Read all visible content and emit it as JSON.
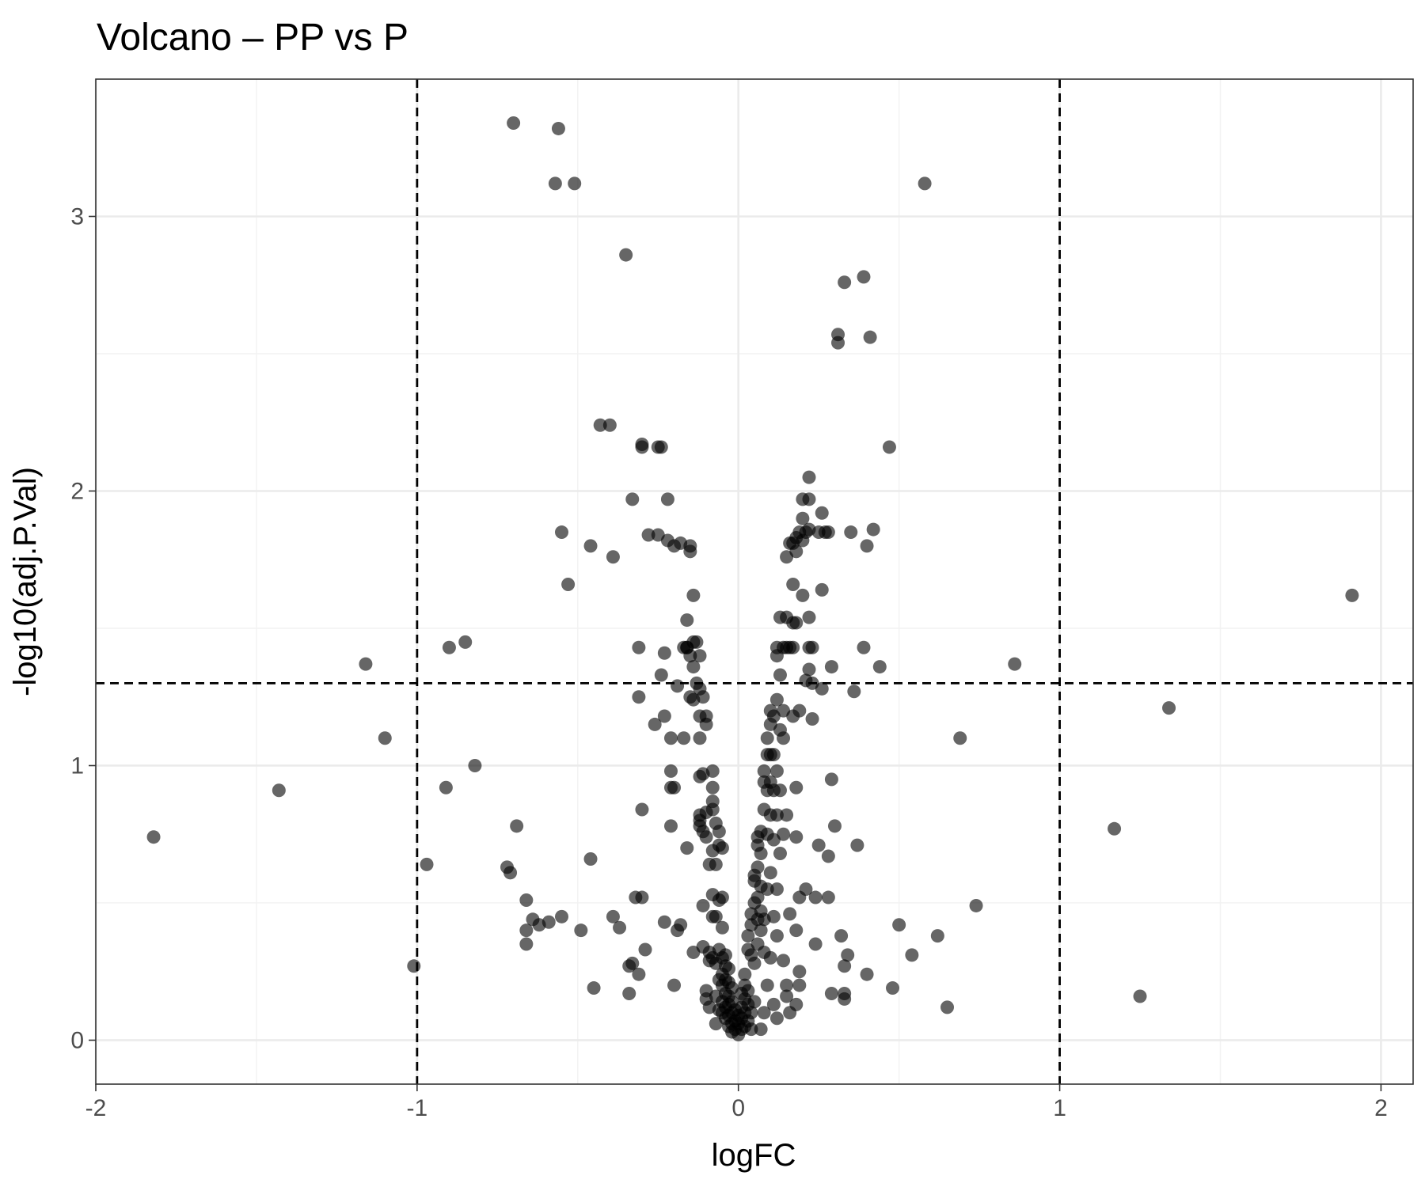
{
  "chart_data": {
    "type": "scatter",
    "title": "Volcano – PP vs P",
    "xlabel": "logFC",
    "ylabel": "-log10(adj.P.Val)",
    "xlim": [
      -2.0,
      2.1
    ],
    "ylim": [
      -0.16,
      3.5
    ],
    "x_ticks": [
      -2,
      -1,
      0,
      1,
      2
    ],
    "x_tick_labels": [
      "-2",
      "-1",
      "0",
      "1",
      "2"
    ],
    "y_ticks": [
      0,
      1,
      2,
      3
    ],
    "y_tick_labels": [
      "0",
      "1",
      "2",
      "3"
    ],
    "grid": true,
    "legend": "none",
    "point_color": "#000000",
    "point_opacity": 0.6,
    "thresholds": {
      "logFC": [
        -1,
        1
      ],
      "neg_log10_p": 1.3
    },
    "points": [
      [
        -1.82,
        0.74
      ],
      [
        -1.43,
        0.91
      ],
      [
        -1.16,
        1.37
      ],
      [
        -1.1,
        1.1
      ],
      [
        -1.01,
        0.27
      ],
      [
        -0.97,
        0.64
      ],
      [
        -0.91,
        0.92
      ],
      [
        -0.9,
        1.43
      ],
      [
        -0.85,
        1.45
      ],
      [
        -0.82,
        1.0
      ],
      [
        -0.72,
        0.63
      ],
      [
        -0.71,
        0.61
      ],
      [
        -0.7,
        3.34
      ],
      [
        -0.69,
        0.78
      ],
      [
        -0.66,
        0.51
      ],
      [
        -0.66,
        0.4
      ],
      [
        -0.66,
        0.35
      ],
      [
        -0.64,
        0.44
      ],
      [
        -0.62,
        0.42
      ],
      [
        -0.59,
        0.43
      ],
      [
        -0.57,
        3.12
      ],
      [
        -0.56,
        3.32
      ],
      [
        -0.55,
        0.45
      ],
      [
        -0.55,
        1.85
      ],
      [
        -0.53,
        1.66
      ],
      [
        -0.51,
        3.12
      ],
      [
        -0.49,
        0.4
      ],
      [
        -0.46,
        1.8
      ],
      [
        -0.46,
        0.66
      ],
      [
        -0.45,
        0.19
      ],
      [
        -0.43,
        2.24
      ],
      [
        -0.4,
        2.24
      ],
      [
        -0.39,
        0.45
      ],
      [
        -0.39,
        1.76
      ],
      [
        -0.37,
        0.41
      ],
      [
        -0.35,
        2.86
      ],
      [
        -0.34,
        0.27
      ],
      [
        -0.34,
        0.17
      ],
      [
        -0.33,
        0.28
      ],
      [
        -0.33,
        1.97
      ],
      [
        -0.32,
        0.52
      ],
      [
        -0.31,
        0.24
      ],
      [
        -0.31,
        1.25
      ],
      [
        -0.31,
        1.43
      ],
      [
        -0.3,
        2.17
      ],
      [
        -0.3,
        2.16
      ],
      [
        -0.3,
        0.52
      ],
      [
        -0.3,
        0.84
      ],
      [
        -0.29,
        0.33
      ],
      [
        -0.28,
        1.84
      ],
      [
        -0.26,
        1.15
      ],
      [
        -0.25,
        1.84
      ],
      [
        -0.25,
        2.16
      ],
      [
        -0.24,
        1.33
      ],
      [
        -0.24,
        2.16
      ],
      [
        -0.23,
        0.43
      ],
      [
        -0.23,
        1.41
      ],
      [
        -0.23,
        1.18
      ],
      [
        -0.22,
        1.97
      ],
      [
        -0.22,
        1.82
      ],
      [
        -0.21,
        1.1
      ],
      [
        -0.21,
        0.78
      ],
      [
        -0.21,
        0.98
      ],
      [
        -0.21,
        0.92
      ],
      [
        -0.2,
        0.92
      ],
      [
        -0.2,
        1.8
      ],
      [
        -0.2,
        0.2
      ],
      [
        -0.19,
        0.4
      ],
      [
        -0.19,
        1.29
      ],
      [
        -0.18,
        1.81
      ],
      [
        -0.18,
        0.42
      ],
      [
        -0.17,
        1.43
      ],
      [
        -0.17,
        1.1
      ],
      [
        -0.16,
        1.53
      ],
      [
        -0.16,
        1.43
      ],
      [
        -0.16,
        0.7
      ],
      [
        -0.16,
        1.43
      ],
      [
        -0.15,
        1.8
      ],
      [
        -0.15,
        1.78
      ],
      [
        -0.15,
        1.25
      ],
      [
        -0.15,
        1.4
      ],
      [
        -0.14,
        1.45
      ],
      [
        -0.14,
        1.36
      ],
      [
        -0.14,
        1.62
      ],
      [
        -0.14,
        1.24
      ],
      [
        -0.14,
        0.32
      ],
      [
        -0.13,
        1.45
      ],
      [
        -0.13,
        1.3
      ],
      [
        -0.12,
        1.28
      ],
      [
        -0.12,
        1.18
      ],
      [
        -0.12,
        1.1
      ],
      [
        -0.12,
        0.96
      ],
      [
        -0.12,
        0.82
      ],
      [
        -0.12,
        0.8
      ],
      [
        -0.12,
        0.78
      ],
      [
        -0.12,
        1.4
      ],
      [
        -0.11,
        1.25
      ],
      [
        -0.11,
        0.97
      ],
      [
        -0.11,
        0.76
      ],
      [
        -0.11,
        0.49
      ],
      [
        -0.11,
        0.34
      ],
      [
        -0.1,
        0.18
      ],
      [
        -0.1,
        0.15
      ],
      [
        -0.1,
        1.18
      ],
      [
        -0.1,
        1.15
      ],
      [
        -0.1,
        0.83
      ],
      [
        -0.1,
        0.74
      ],
      [
        -0.09,
        0.64
      ],
      [
        -0.09,
        0.32
      ],
      [
        -0.09,
        0.29
      ],
      [
        -0.09,
        0.12
      ],
      [
        -0.08,
        0.98
      ],
      [
        -0.08,
        0.92
      ],
      [
        -0.08,
        0.87
      ],
      [
        -0.08,
        0.84
      ],
      [
        -0.08,
        0.69
      ],
      [
        -0.08,
        0.53
      ],
      [
        -0.08,
        0.45
      ],
      [
        -0.08,
        0.3
      ],
      [
        -0.07,
        0.79
      ],
      [
        -0.07,
        0.64
      ],
      [
        -0.07,
        0.45
      ],
      [
        -0.07,
        0.28
      ],
      [
        -0.07,
        0.16
      ],
      [
        -0.07,
        0.06
      ],
      [
        -0.06,
        0.76
      ],
      [
        -0.06,
        0.71
      ],
      [
        -0.06,
        0.51
      ],
      [
        -0.06,
        0.33
      ],
      [
        -0.06,
        0.22
      ],
      [
        -0.06,
        0.11
      ],
      [
        -0.05,
        0.7
      ],
      [
        -0.05,
        0.52
      ],
      [
        -0.05,
        0.41
      ],
      [
        -0.05,
        0.3
      ],
      [
        -0.05,
        0.24
      ],
      [
        -0.05,
        0.2
      ],
      [
        -0.05,
        0.14
      ],
      [
        -0.05,
        0.1
      ],
      [
        -0.04,
        0.31
      ],
      [
        -0.04,
        0.27
      ],
      [
        -0.04,
        0.22
      ],
      [
        -0.04,
        0.17
      ],
      [
        -0.04,
        0.12
      ],
      [
        -0.04,
        0.08
      ],
      [
        -0.03,
        0.26
      ],
      [
        -0.03,
        0.21
      ],
      [
        -0.03,
        0.16
      ],
      [
        -0.03,
        0.13
      ],
      [
        -0.03,
        0.09
      ],
      [
        -0.03,
        0.05
      ],
      [
        -0.02,
        0.19
      ],
      [
        -0.02,
        0.14
      ],
      [
        -0.02,
        0.1
      ],
      [
        -0.02,
        0.06
      ],
      [
        -0.02,
        0.03
      ],
      [
        -0.01,
        0.11
      ],
      [
        -0.01,
        0.07
      ],
      [
        -0.01,
        0.04
      ],
      [
        0.0,
        0.06
      ],
      [
        0.0,
        0.02
      ],
      [
        0.0,
        0.09
      ],
      [
        0.01,
        0.04
      ],
      [
        0.01,
        0.08
      ],
      [
        0.01,
        0.12
      ],
      [
        0.01,
        0.17
      ],
      [
        0.02,
        0.05
      ],
      [
        0.02,
        0.1
      ],
      [
        0.02,
        0.15
      ],
      [
        0.02,
        0.2
      ],
      [
        0.02,
        0.24
      ],
      [
        0.03,
        0.07
      ],
      [
        0.03,
        0.13
      ],
      [
        0.03,
        0.18
      ],
      [
        0.03,
        0.33
      ],
      [
        0.03,
        0.38
      ],
      [
        0.04,
        0.04
      ],
      [
        0.04,
        0.1
      ],
      [
        0.04,
        0.31
      ],
      [
        0.04,
        0.42
      ],
      [
        0.04,
        0.46
      ],
      [
        0.05,
        0.14
      ],
      [
        0.05,
        0.28
      ],
      [
        0.05,
        0.5
      ],
      [
        0.05,
        0.58
      ],
      [
        0.05,
        0.6
      ],
      [
        0.06,
        0.35
      ],
      [
        0.06,
        0.44
      ],
      [
        0.06,
        0.52
      ],
      [
        0.06,
        0.63
      ],
      [
        0.06,
        0.71
      ],
      [
        0.06,
        0.74
      ],
      [
        0.07,
        0.04
      ],
      [
        0.07,
        0.4
      ],
      [
        0.07,
        0.47
      ],
      [
        0.07,
        0.56
      ],
      [
        0.07,
        0.68
      ],
      [
        0.07,
        0.76
      ],
      [
        0.08,
        0.84
      ],
      [
        0.08,
        0.94
      ],
      [
        0.08,
        0.98
      ],
      [
        0.08,
        0.44
      ],
      [
        0.08,
        0.32
      ],
      [
        0.08,
        0.1
      ],
      [
        0.09,
        0.75
      ],
      [
        0.09,
        1.1
      ],
      [
        0.09,
        1.04
      ],
      [
        0.09,
        0.91
      ],
      [
        0.09,
        0.55
      ],
      [
        0.09,
        0.2
      ],
      [
        0.1,
        0.82
      ],
      [
        0.1,
        1.2
      ],
      [
        0.1,
        1.15
      ],
      [
        0.1,
        1.04
      ],
      [
        0.1,
        0.94
      ],
      [
        0.1,
        0.61
      ],
      [
        0.1,
        0.3
      ],
      [
        0.11,
        0.13
      ],
      [
        0.11,
        0.45
      ],
      [
        0.11,
        0.73
      ],
      [
        0.11,
        0.91
      ],
      [
        0.11,
        1.04
      ],
      [
        0.11,
        1.18
      ],
      [
        0.12,
        1.43
      ],
      [
        0.12,
        1.4
      ],
      [
        0.12,
        1.24
      ],
      [
        0.12,
        0.98
      ],
      [
        0.12,
        0.82
      ],
      [
        0.12,
        0.55
      ],
      [
        0.12,
        0.38
      ],
      [
        0.12,
        0.08
      ],
      [
        0.13,
        0.68
      ],
      [
        0.13,
        0.91
      ],
      [
        0.13,
        1.13
      ],
      [
        0.13,
        1.33
      ],
      [
        0.13,
        1.54
      ],
      [
        0.14,
        0.29
      ],
      [
        0.14,
        1.43
      ],
      [
        0.14,
        1.2
      ],
      [
        0.14,
        1.1
      ],
      [
        0.14,
        0.75
      ],
      [
        0.15,
        1.76
      ],
      [
        0.15,
        1.54
      ],
      [
        0.15,
        1.43
      ],
      [
        0.15,
        0.82
      ],
      [
        0.15,
        0.2
      ],
      [
        0.15,
        0.16
      ],
      [
        0.16,
        1.81
      ],
      [
        0.16,
        1.43
      ],
      [
        0.16,
        0.46
      ],
      [
        0.16,
        0.1
      ],
      [
        0.17,
        1.81
      ],
      [
        0.17,
        1.52
      ],
      [
        0.17,
        1.43
      ],
      [
        0.17,
        1.18
      ],
      [
        0.17,
        1.66
      ],
      [
        0.18,
        1.52
      ],
      [
        0.18,
        1.83
      ],
      [
        0.18,
        1.78
      ],
      [
        0.18,
        0.92
      ],
      [
        0.18,
        0.74
      ],
      [
        0.18,
        0.4
      ],
      [
        0.18,
        0.13
      ],
      [
        0.19,
        1.2
      ],
      [
        0.19,
        1.85
      ],
      [
        0.19,
        0.52
      ],
      [
        0.19,
        0.2
      ],
      [
        0.19,
        0.25
      ],
      [
        0.2,
        1.9
      ],
      [
        0.2,
        1.97
      ],
      [
        0.2,
        1.62
      ],
      [
        0.2,
        1.82
      ],
      [
        0.21,
        1.85
      ],
      [
        0.21,
        1.31
      ],
      [
        0.21,
        0.55
      ],
      [
        0.22,
        2.05
      ],
      [
        0.22,
        1.97
      ],
      [
        0.22,
        1.86
      ],
      [
        0.22,
        1.54
      ],
      [
        0.22,
        1.43
      ],
      [
        0.22,
        1.35
      ],
      [
        0.23,
        1.43
      ],
      [
        0.23,
        1.17
      ],
      [
        0.23,
        1.3
      ],
      [
        0.24,
        0.52
      ],
      [
        0.24,
        0.35
      ],
      [
        0.25,
        1.85
      ],
      [
        0.25,
        0.71
      ],
      [
        0.26,
        1.92
      ],
      [
        0.26,
        1.64
      ],
      [
        0.26,
        1.28
      ],
      [
        0.27,
        1.85
      ],
      [
        0.28,
        1.85
      ],
      [
        0.28,
        0.67
      ],
      [
        0.28,
        0.52
      ],
      [
        0.29,
        0.95
      ],
      [
        0.29,
        1.36
      ],
      [
        0.29,
        0.17
      ],
      [
        0.3,
        0.78
      ],
      [
        0.31,
        2.57
      ],
      [
        0.31,
        2.54
      ],
      [
        0.32,
        0.38
      ],
      [
        0.33,
        2.76
      ],
      [
        0.33,
        0.27
      ],
      [
        0.33,
        0.17
      ],
      [
        0.33,
        0.15
      ],
      [
        0.34,
        0.31
      ],
      [
        0.35,
        1.85
      ],
      [
        0.36,
        1.27
      ],
      [
        0.37,
        0.71
      ],
      [
        0.39,
        2.78
      ],
      [
        0.39,
        1.43
      ],
      [
        0.4,
        1.8
      ],
      [
        0.4,
        0.24
      ],
      [
        0.41,
        2.56
      ],
      [
        0.42,
        1.86
      ],
      [
        0.44,
        1.36
      ],
      [
        0.47,
        2.16
      ],
      [
        0.48,
        0.19
      ],
      [
        0.5,
        0.42
      ],
      [
        0.54,
        0.31
      ],
      [
        0.58,
        3.12
      ],
      [
        0.62,
        0.38
      ],
      [
        0.65,
        0.12
      ],
      [
        0.69,
        1.1
      ],
      [
        0.74,
        0.49
      ],
      [
        0.86,
        1.37
      ],
      [
        1.17,
        0.77
      ],
      [
        1.25,
        0.16
      ],
      [
        1.34,
        1.21
      ],
      [
        1.91,
        1.62
      ]
    ]
  }
}
